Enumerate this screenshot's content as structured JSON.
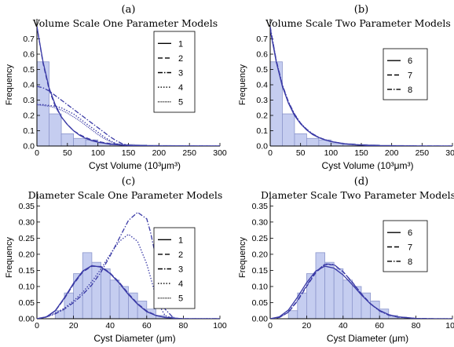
{
  "colors": {
    "bar_fill": "#c5cdf0",
    "bar_stroke": "#8c96cc",
    "curve": "#3a3aa6",
    "axis": "#000000"
  },
  "chart_data": [
    {
      "panel": "(a)",
      "title": "Volume Scale One Parameter Models",
      "type": "histogram+line",
      "xlabel": "Cyst Volume (10³μm³)",
      "ylabel": "Frequency",
      "xlim": [
        0,
        300
      ],
      "ylim": [
        0,
        0.8
      ],
      "xticks": [
        0,
        50,
        100,
        150,
        200,
        250,
        300
      ],
      "yticks": [
        0.0,
        0.1,
        0.2,
        0.3,
        0.4,
        0.5,
        0.6,
        0.7
      ],
      "bin_width": 20,
      "bin_starts": [
        0,
        20,
        40,
        60,
        80,
        100,
        120,
        140,
        160,
        180,
        200,
        220,
        240,
        260,
        280
      ],
      "histogram": [
        0.55,
        0.21,
        0.08,
        0.05,
        0.04,
        0.02,
        0.015,
        0.01,
        0.008,
        0.005,
        0.004,
        0.003,
        0.002,
        0.002,
        0.001
      ],
      "legend": {
        "placement": "top-right",
        "entries": [
          "1",
          "2",
          "3",
          "4",
          "5"
        ]
      },
      "series": [
        {
          "name": "1",
          "style": "solid",
          "x": [
            0,
            10,
            20,
            30,
            40,
            50,
            60,
            70,
            80,
            90,
            100,
            120,
            140,
            160,
            180,
            200,
            250,
            300
          ],
          "y": [
            0.78,
            0.55,
            0.38,
            0.27,
            0.19,
            0.14,
            0.1,
            0.07,
            0.05,
            0.035,
            0.025,
            0.012,
            0.006,
            0.003,
            0.001,
            0.0,
            0.0,
            0.0
          ]
        },
        {
          "name": "2",
          "style": "dashed",
          "x": [
            0,
            10,
            20,
            30,
            40,
            50,
            60,
            70,
            80,
            90,
            100,
            120,
            140,
            160,
            180,
            200,
            250,
            300
          ],
          "y": [
            0.78,
            0.54,
            0.37,
            0.26,
            0.19,
            0.14,
            0.1,
            0.075,
            0.055,
            0.04,
            0.03,
            0.015,
            0.007,
            0.003,
            0.001,
            0.0,
            0.0,
            0.0
          ]
        },
        {
          "name": "3",
          "style": "dashdot",
          "x": [
            0,
            10,
            20,
            30,
            40,
            50,
            60,
            70,
            80,
            90,
            100,
            110,
            120,
            130,
            140,
            150,
            160,
            200,
            250,
            300
          ],
          "y": [
            0.39,
            0.38,
            0.36,
            0.33,
            0.3,
            0.27,
            0.24,
            0.21,
            0.18,
            0.15,
            0.12,
            0.09,
            0.06,
            0.035,
            0.015,
            0.005,
            0.0,
            0.0,
            0.0,
            0.0
          ]
        },
        {
          "name": "4",
          "style": "dotted",
          "x": [
            0,
            10,
            20,
            30,
            40,
            50,
            60,
            70,
            80,
            90,
            100,
            110,
            120,
            130,
            140,
            150,
            160,
            200,
            250,
            300
          ],
          "y": [
            0.27,
            0.27,
            0.265,
            0.26,
            0.25,
            0.23,
            0.21,
            0.18,
            0.15,
            0.12,
            0.09,
            0.06,
            0.035,
            0.015,
            0.005,
            0.001,
            0.0,
            0.0,
            0.0,
            0.0
          ]
        },
        {
          "name": "5",
          "style": "densedot",
          "x": [
            0,
            10,
            20,
            30,
            40,
            50,
            60,
            70,
            80,
            90,
            100,
            110,
            120,
            130,
            140,
            150,
            160,
            200,
            250,
            300
          ],
          "y": [
            0.27,
            0.265,
            0.26,
            0.25,
            0.235,
            0.215,
            0.19,
            0.165,
            0.135,
            0.105,
            0.075,
            0.05,
            0.03,
            0.013,
            0.004,
            0.001,
            0.0,
            0.0,
            0.0,
            0.0
          ]
        }
      ]
    },
    {
      "panel": "(b)",
      "title": "Volume Scale Two Parameter Models",
      "type": "histogram+line",
      "xlabel": "Cyst Volume (10³μm³)",
      "ylabel": "Frequency",
      "xlim": [
        0,
        300
      ],
      "ylim": [
        0,
        0.8
      ],
      "xticks": [
        0,
        50,
        100,
        150,
        200,
        250,
        300
      ],
      "yticks": [
        0.0,
        0.1,
        0.2,
        0.3,
        0.4,
        0.5,
        0.6,
        0.7
      ],
      "bin_width": 20,
      "bin_starts": [
        0,
        20,
        40,
        60,
        80,
        100,
        120,
        140,
        160,
        180,
        200,
        220,
        240,
        260,
        280
      ],
      "histogram": [
        0.55,
        0.21,
        0.08,
        0.05,
        0.04,
        0.02,
        0.015,
        0.01,
        0.008,
        0.005,
        0.004,
        0.003,
        0.002,
        0.002,
        0.001
      ],
      "legend": {
        "placement": "top-right",
        "entries": [
          "6",
          "7",
          "8"
        ]
      },
      "series": [
        {
          "name": "6",
          "style": "solid",
          "x": [
            0,
            10,
            20,
            30,
            40,
            50,
            60,
            70,
            80,
            90,
            100,
            120,
            140,
            160,
            180,
            200,
            250,
            300
          ],
          "y": [
            0.76,
            0.55,
            0.39,
            0.28,
            0.2,
            0.145,
            0.105,
            0.075,
            0.055,
            0.04,
            0.03,
            0.015,
            0.008,
            0.004,
            0.002,
            0.001,
            0.0,
            0.0
          ]
        },
        {
          "name": "7",
          "style": "dashed",
          "x": [
            0,
            10,
            20,
            30,
            40,
            50,
            60,
            70,
            80,
            90,
            100,
            120,
            140,
            160,
            180,
            200,
            250,
            300
          ],
          "y": [
            0.77,
            0.555,
            0.395,
            0.285,
            0.205,
            0.148,
            0.107,
            0.077,
            0.056,
            0.041,
            0.03,
            0.016,
            0.008,
            0.004,
            0.002,
            0.001,
            0.0,
            0.0
          ]
        },
        {
          "name": "8",
          "style": "dashdot",
          "x": [
            0,
            10,
            20,
            30,
            40,
            50,
            60,
            70,
            80,
            90,
            100,
            120,
            140,
            160,
            180,
            200,
            250,
            300
          ],
          "y": [
            0.78,
            0.56,
            0.4,
            0.29,
            0.21,
            0.15,
            0.11,
            0.08,
            0.057,
            0.042,
            0.031,
            0.016,
            0.008,
            0.004,
            0.002,
            0.001,
            0.0,
            0.0
          ]
        }
      ]
    },
    {
      "panel": "(c)",
      "title": "Diameter Scale One Parameter Models",
      "type": "histogram+line",
      "xlabel": "Cyst Diameter (μm)",
      "ylabel": "Frequency",
      "xlim": [
        0,
        100
      ],
      "ylim": [
        0,
        0.38
      ],
      "xticks": [
        0,
        20,
        40,
        60,
        80,
        100
      ],
      "yticks": [
        0.0,
        0.05,
        0.1,
        0.15,
        0.2,
        0.25,
        0.3,
        0.35
      ],
      "bin_width": 5,
      "bin_starts": [
        10,
        15,
        20,
        25,
        30,
        35,
        40,
        45,
        50,
        55,
        60,
        65,
        70
      ],
      "histogram": [
        0.025,
        0.08,
        0.14,
        0.205,
        0.175,
        0.155,
        0.12,
        0.1,
        0.08,
        0.055,
        0.03,
        0.01,
        0.005
      ],
      "legend": {
        "placement": "top-left",
        "entries": [
          "1",
          "2",
          "3",
          "4",
          "5"
        ]
      },
      "series": [
        {
          "name": "1",
          "style": "solid",
          "x": [
            0,
            5,
            10,
            15,
            20,
            25,
            30,
            35,
            40,
            45,
            50,
            55,
            60,
            65,
            70,
            80,
            90,
            100
          ],
          "y": [
            0.0,
            0.005,
            0.025,
            0.065,
            0.11,
            0.148,
            0.165,
            0.16,
            0.14,
            0.11,
            0.075,
            0.045,
            0.022,
            0.01,
            0.004,
            0.0,
            0.0,
            0.0
          ]
        },
        {
          "name": "2",
          "style": "dashed",
          "x": [
            0,
            5,
            10,
            15,
            20,
            25,
            30,
            35,
            40,
            45,
            50,
            55,
            60,
            65,
            70,
            80,
            90,
            100
          ],
          "y": [
            0.0,
            0.005,
            0.024,
            0.062,
            0.107,
            0.145,
            0.163,
            0.162,
            0.142,
            0.113,
            0.078,
            0.047,
            0.024,
            0.011,
            0.004,
            0.0,
            0.0,
            0.0
          ]
        },
        {
          "name": "3",
          "style": "dashdot",
          "x": [
            0,
            5,
            10,
            15,
            20,
            25,
            30,
            35,
            40,
            45,
            50,
            55,
            60,
            62,
            65,
            67,
            70,
            75,
            100
          ],
          "y": [
            0.0,
            0.005,
            0.015,
            0.03,
            0.05,
            0.075,
            0.105,
            0.145,
            0.195,
            0.25,
            0.305,
            0.33,
            0.31,
            0.27,
            0.19,
            0.11,
            0.03,
            0.0,
            0.0
          ]
        },
        {
          "name": "4",
          "style": "dotted",
          "x": [
            0,
            5,
            10,
            15,
            20,
            25,
            30,
            35,
            40,
            45,
            50,
            55,
            60,
            62,
            65,
            67,
            70,
            75,
            100
          ],
          "y": [
            0.0,
            0.006,
            0.017,
            0.033,
            0.055,
            0.082,
            0.115,
            0.155,
            0.2,
            0.24,
            0.262,
            0.24,
            0.17,
            0.13,
            0.07,
            0.04,
            0.01,
            0.0,
            0.0
          ]
        },
        {
          "name": "5",
          "style": "densedot",
          "x": [
            0,
            5,
            10,
            15,
            20,
            25,
            30,
            35,
            40,
            45,
            50,
            55,
            60,
            65,
            70,
            80,
            90,
            100
          ],
          "y": [
            0.0,
            0.005,
            0.024,
            0.063,
            0.108,
            0.146,
            0.164,
            0.161,
            0.141,
            0.111,
            0.076,
            0.046,
            0.023,
            0.01,
            0.004,
            0.0,
            0.0,
            0.0
          ]
        }
      ]
    },
    {
      "panel": "(d)",
      "title": "Diameter Scale Two Parameter Models",
      "type": "histogram+line",
      "xlabel": "Cyst Diameter (μm)",
      "ylabel": "Frequency",
      "xlim": [
        0,
        100
      ],
      "ylim": [
        0,
        0.38
      ],
      "xticks": [
        0,
        20,
        40,
        60,
        80,
        100
      ],
      "yticks": [
        0.0,
        0.05,
        0.1,
        0.15,
        0.2,
        0.25,
        0.3,
        0.35
      ],
      "bin_width": 5,
      "bin_starts": [
        10,
        15,
        20,
        25,
        30,
        35,
        40,
        45,
        50,
        55,
        60,
        65,
        70
      ],
      "histogram": [
        0.025,
        0.08,
        0.14,
        0.205,
        0.175,
        0.155,
        0.12,
        0.1,
        0.08,
        0.055,
        0.03,
        0.01,
        0.005
      ],
      "legend": {
        "placement": "top-left",
        "entries": [
          "6",
          "7",
          "8"
        ]
      },
      "series": [
        {
          "name": "6",
          "style": "solid",
          "x": [
            0,
            5,
            10,
            15,
            20,
            25,
            30,
            35,
            40,
            45,
            50,
            55,
            60,
            65,
            70,
            80,
            90,
            100
          ],
          "y": [
            0.0,
            0.006,
            0.027,
            0.067,
            0.112,
            0.148,
            0.163,
            0.157,
            0.136,
            0.106,
            0.074,
            0.046,
            0.026,
            0.013,
            0.006,
            0.001,
            0.0,
            0.0
          ]
        },
        {
          "name": "7",
          "style": "dashed",
          "x": [
            0,
            5,
            10,
            15,
            20,
            25,
            30,
            35,
            40,
            45,
            50,
            55,
            60,
            65,
            70,
            80,
            90,
            100
          ],
          "y": [
            0.0,
            0.004,
            0.02,
            0.055,
            0.1,
            0.143,
            0.168,
            0.167,
            0.146,
            0.114,
            0.078,
            0.047,
            0.025,
            0.012,
            0.005,
            0.001,
            0.0,
            0.0
          ]
        },
        {
          "name": "8",
          "style": "dashdot",
          "x": [
            0,
            5,
            10,
            15,
            20,
            25,
            30,
            35,
            40,
            45,
            50,
            55,
            60,
            65,
            70,
            80,
            90,
            100
          ],
          "y": [
            0.0,
            0.004,
            0.021,
            0.057,
            0.103,
            0.145,
            0.17,
            0.168,
            0.146,
            0.113,
            0.077,
            0.046,
            0.024,
            0.011,
            0.005,
            0.001,
            0.0,
            0.0
          ]
        }
      ]
    }
  ]
}
